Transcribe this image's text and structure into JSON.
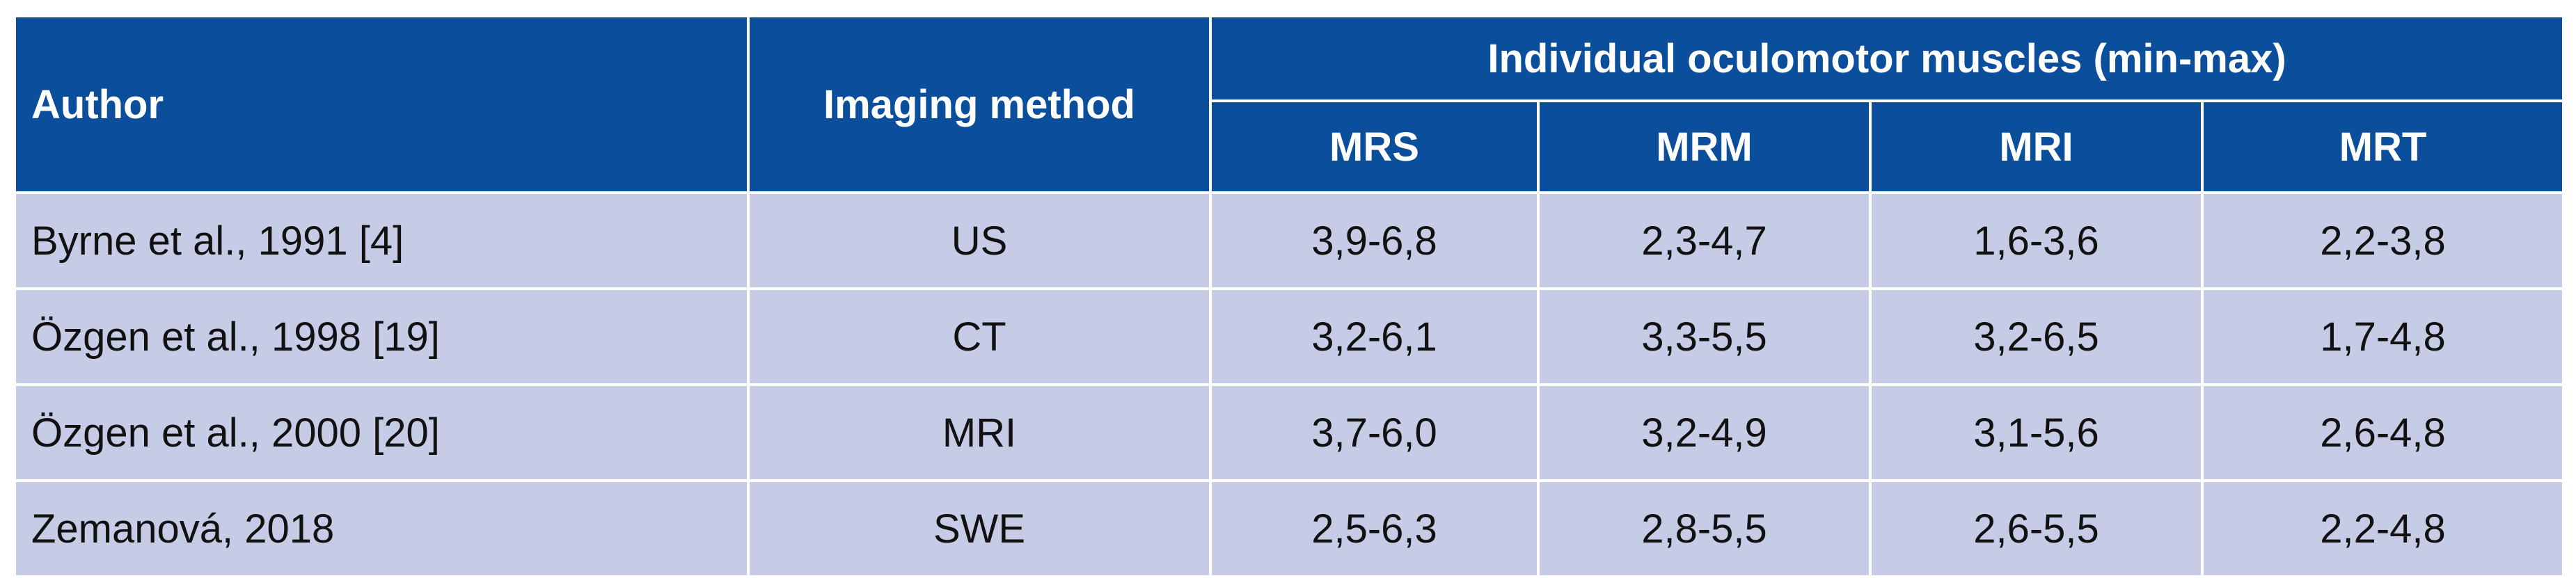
{
  "table": {
    "headers": {
      "author": "Author",
      "imaging_method": "Imaging method",
      "group": "Individual oculomotor muscles (min-max)",
      "muscles": [
        "MRS",
        "MRM",
        "MRI",
        "MRT"
      ]
    },
    "rows": [
      {
        "author": "Byrne et al., 1991 [4]",
        "method": "US",
        "values": [
          "3,9-6,8",
          "2,3-4,7",
          "1,6-3,6",
          "2,2-3,8"
        ]
      },
      {
        "author": "Özgen et al., 1998 [19]",
        "method": "CT",
        "values": [
          "3,2-6,1",
          "3,3-5,5",
          "3,2-6,5",
          "1,7-4,8"
        ]
      },
      {
        "author": "Özgen et al., 2000 [20]",
        "method": "MRI",
        "values": [
          "3,7-6,0",
          "3,2-4,9",
          "3,1-5,6",
          "2,6-4,8"
        ]
      },
      {
        "author": "Zemanová, 2018",
        "method": "SWE",
        "values": [
          "2,5-6,3",
          "2,8-5,5",
          "2,6-5,5",
          "2,2-4,8"
        ]
      }
    ],
    "colors": {
      "header_bg": "#0b4f9c",
      "header_text": "#ffffff",
      "body_bg": "#c6cce6"
    }
  }
}
